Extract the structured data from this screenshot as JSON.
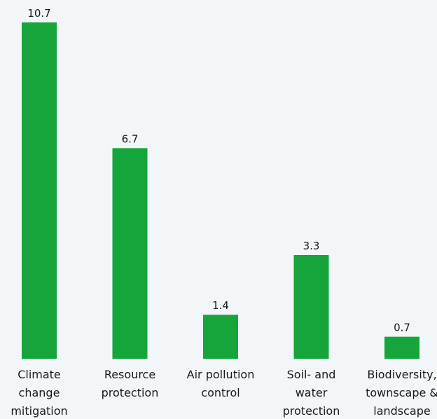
{
  "chart_data": {
    "type": "bar",
    "categories": [
      [
        "Climate",
        "change",
        "mitigation"
      ],
      [
        "Resource",
        "protection"
      ],
      [
        "Air pollution",
        "control"
      ],
      [
        "Soil- and",
        "water",
        "protection"
      ],
      [
        "Biodiversity,",
        "townscape &",
        "landscape"
      ]
    ],
    "values": [
      10.7,
      6.7,
      1.4,
      3.3,
      0.7
    ],
    "value_labels": [
      "10.7",
      "6.7",
      "1.4",
      "3.3",
      "0.7"
    ],
    "title": "",
    "xlabel": "",
    "ylabel": "",
    "ylim": [
      0,
      10.7
    ],
    "grid": false,
    "legend": "none",
    "bar_color": "#15a53a"
  }
}
